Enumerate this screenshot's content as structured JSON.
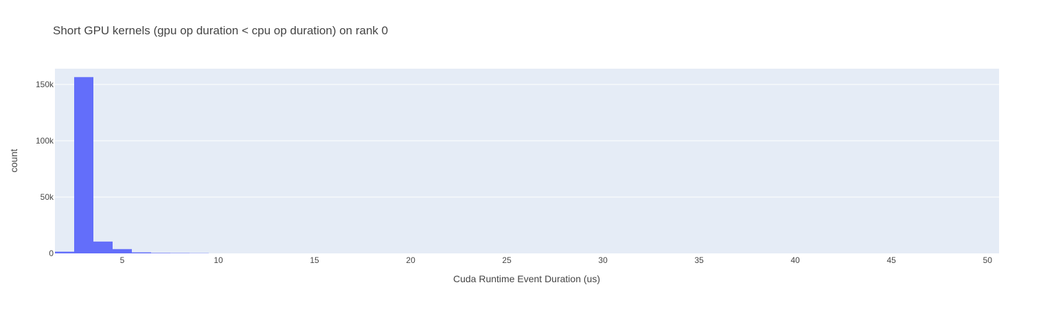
{
  "chart_data": {
    "type": "bar",
    "title": "Short GPU kernels (gpu op duration < cpu op duration) on rank 0",
    "xlabel": "Cuda Runtime Event Duration (us)",
    "ylabel": "count",
    "xlim": [
      1.5,
      50.6
    ],
    "ylim": [
      0,
      164000
    ],
    "x_ticks": [
      5,
      10,
      15,
      20,
      25,
      30,
      35,
      40,
      45,
      50
    ],
    "y_ticks": [
      0,
      50000,
      100000,
      150000
    ],
    "y_tick_labels": [
      "0",
      "50k",
      "100k",
      "150k"
    ],
    "bin_width": 1,
    "bins": [
      {
        "x0": 1.5,
        "x1": 2.5,
        "count": 1500
      },
      {
        "x0": 2.5,
        "x1": 3.5,
        "count": 156500
      },
      {
        "x0": 3.5,
        "x1": 4.5,
        "count": 10500
      },
      {
        "x0": 4.5,
        "x1": 5.5,
        "count": 3800
      },
      {
        "x0": 5.5,
        "x1": 6.5,
        "count": 900
      },
      {
        "x0": 6.5,
        "x1": 7.5,
        "count": 400
      },
      {
        "x0": 7.5,
        "x1": 8.5,
        "count": 300
      },
      {
        "x0": 8.5,
        "x1": 9.5,
        "count": 200
      }
    ],
    "grid": true,
    "colors": {
      "bar": "#636efa",
      "plot_bg": "#e5ecf6",
      "grid": "#ffffff",
      "text": "#444444"
    }
  }
}
